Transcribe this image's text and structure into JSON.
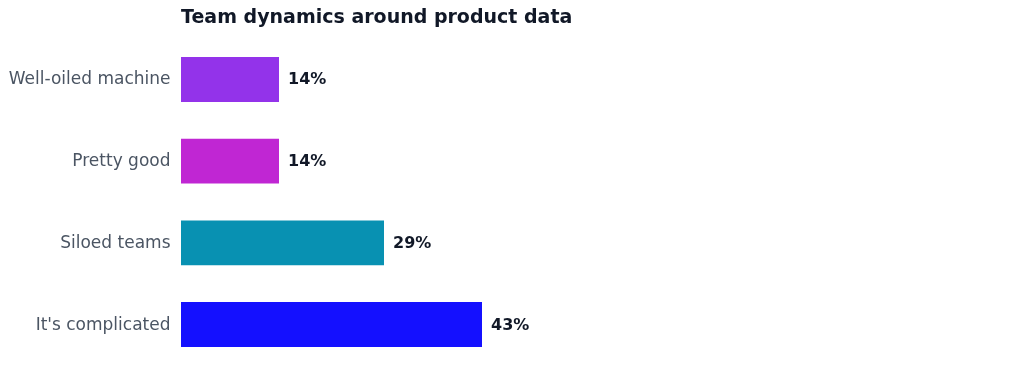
{
  "chart_data": {
    "type": "bar",
    "orientation": "horizontal",
    "title": "Team dynamics around product data",
    "categories": [
      "Well-oiled machine",
      "Pretty good",
      "Siloed teams",
      "It's complicated"
    ],
    "values": [
      14,
      14,
      29,
      43
    ],
    "colors": [
      "#9333ea",
      "#c026d3",
      "#0891b2",
      "#1410ff"
    ],
    "value_labels": [
      "14%",
      "14%",
      "29%",
      "43%"
    ],
    "tick_labels": "y"
  }
}
